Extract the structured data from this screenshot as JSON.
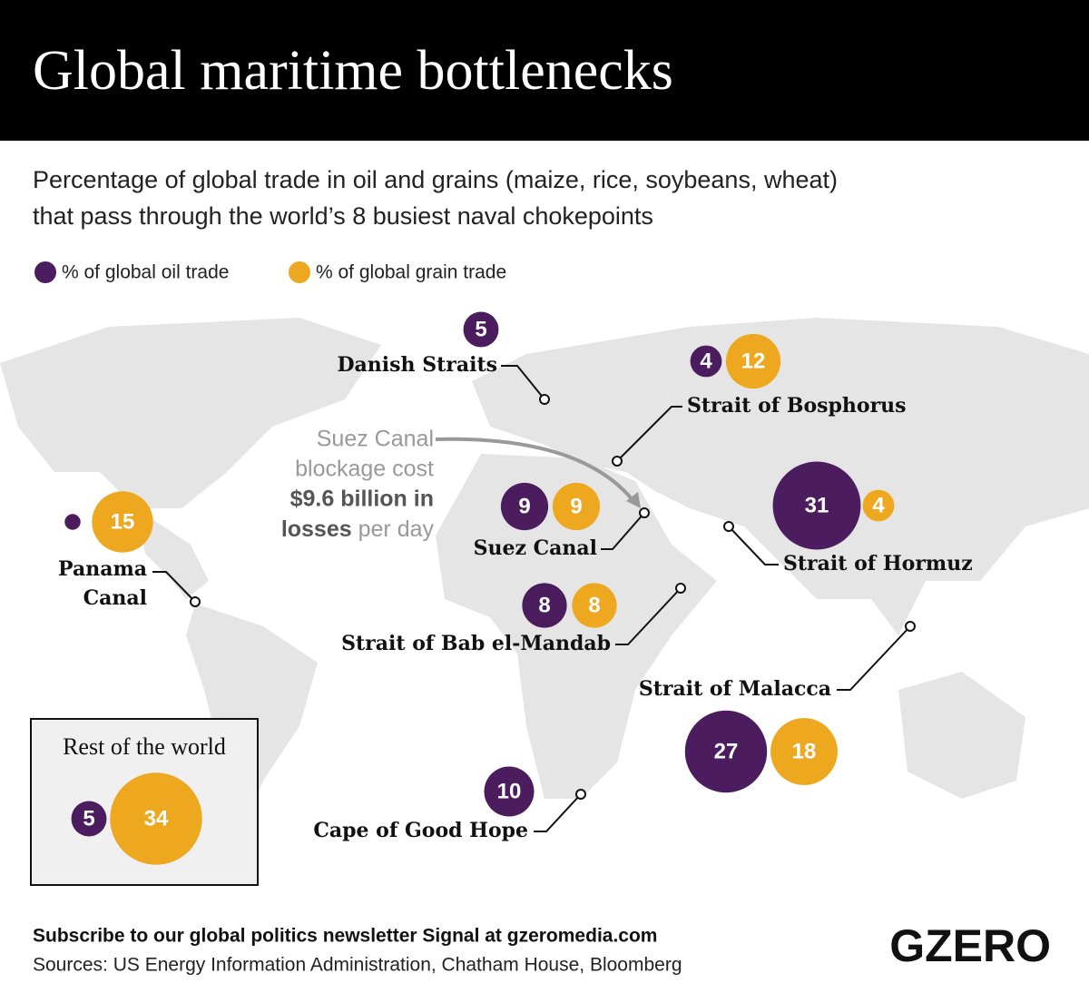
{
  "header": {
    "title": "Global maritime bottlenecks"
  },
  "subtitle": [
    "Percentage of global trade in oil and grains (maize, rice, soybeans, wheat)",
    "that pass through the world’s 8 busiest naval chokepoints"
  ],
  "legend": {
    "oil": {
      "label": "% of global oil trade",
      "color": "#4b1c5e"
    },
    "grain": {
      "label": "% of global grain trade",
      "color": "#eea81f"
    }
  },
  "chokepoints": [
    {
      "name": [
        "Danish Straits"
      ],
      "oil": 5,
      "grain": null
    },
    {
      "name": [
        "Strait of Bosphorus"
      ],
      "oil": 4,
      "grain": 12
    },
    {
      "name": [
        "Suez Canal"
      ],
      "oil": 9,
      "grain": 9
    },
    {
      "name": [
        "Strait of Hormuz"
      ],
      "oil": 31,
      "grain": 4
    },
    {
      "name": [
        "Panama",
        "Canal"
      ],
      "oil": 1,
      "grain": 15
    },
    {
      "name": [
        "Strait of Bab el-Mandab"
      ],
      "oil": 8,
      "grain": 8
    },
    {
      "name": [
        "Strait of Malacca"
      ],
      "oil": 27,
      "grain": 18
    },
    {
      "name": [
        "Cape of Good Hope"
      ],
      "oil": 10,
      "grain": null
    }
  ],
  "rest_of_world": {
    "label": "Rest of the world",
    "oil": 5,
    "grain": 34
  },
  "annotation": [
    "Suez Canal",
    "blockage cost",
    "$9.6 billion in",
    "losses",
    "per day"
  ],
  "footer": {
    "subscribe": "Subscribe to our global politics newsletter Signal at gzeromedia.com",
    "sources": "Sources: US Energy Information Administration, Chatham House, Bloomberg",
    "logo": "GZERO"
  }
}
